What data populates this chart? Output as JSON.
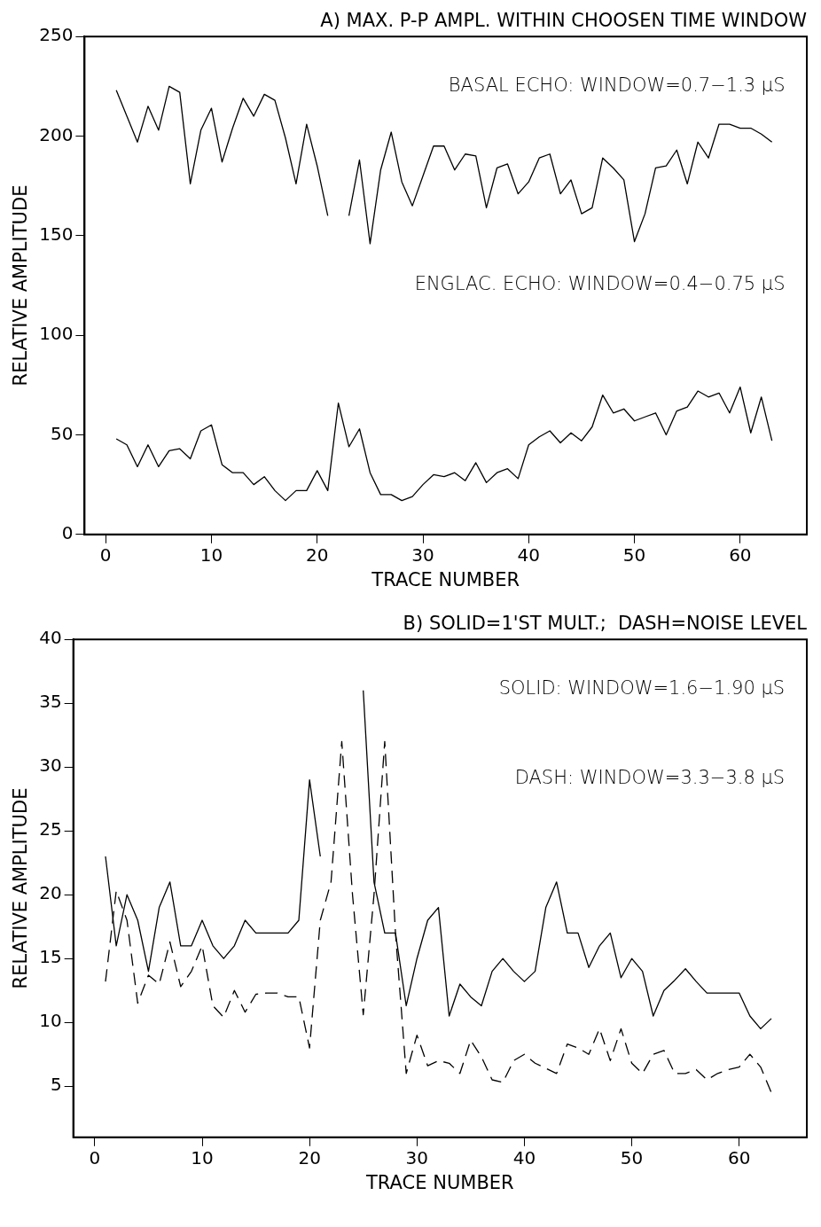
{
  "chart_data": [
    {
      "type": "line",
      "title": "A) MAX. P-P AMPL. WITHIN CHOOSEN TIME WINDOW",
      "xlabel": "TRACE NUMBER",
      "ylabel": "RELATIVE AMPLITUDE",
      "annotations": [
        "BASAL ECHO: WINDOW=0.7−1.3 μS",
        "ENGLAC. ECHO: WINDOW=0.4−0.75 μS"
      ],
      "x": [
        1,
        2,
        3,
        4,
        5,
        6,
        7,
        8,
        9,
        10,
        11,
        12,
        13,
        14,
        15,
        16,
        17,
        18,
        19,
        20,
        21,
        22,
        23,
        24,
        25,
        26,
        27,
        28,
        29,
        30,
        31,
        32,
        33,
        34,
        35,
        36,
        37,
        38,
        39,
        40,
        41,
        42,
        43,
        44,
        45,
        46,
        47,
        48,
        49,
        50,
        51,
        52,
        53,
        54,
        55,
        56,
        57,
        58,
        59,
        60,
        61,
        62,
        63
      ],
      "series": [
        {
          "color": "#000000",
          "line_style": "solid",
          "values": [
            223,
            210,
            197,
            215,
            203,
            225,
            222,
            176,
            203,
            214,
            187,
            204,
            219,
            210,
            221,
            218,
            199,
            176,
            206,
            185,
            160,
            null,
            160,
            188,
            146,
            183,
            202,
            177,
            165,
            180,
            195,
            195,
            183,
            191,
            190,
            164,
            184,
            186,
            171,
            177,
            189,
            191,
            171,
            178,
            161,
            164,
            189,
            184,
            178,
            147,
            161,
            184,
            185,
            193,
            176,
            197,
            189,
            206,
            206,
            204,
            204,
            201,
            197
          ]
        },
        {
          "color": "#000000",
          "line_style": "solid",
          "values": [
            48,
            45,
            34,
            45,
            34,
            42,
            43,
            38,
            52,
            55,
            35,
            31,
            31,
            25,
            29,
            22,
            17,
            22,
            22,
            32,
            22,
            66,
            44,
            53,
            31,
            20,
            20,
            17,
            19,
            25,
            30,
            29,
            31,
            27,
            36,
            26,
            31,
            33,
            28,
            45,
            49,
            52,
            46,
            51,
            47,
            54,
            70,
            61,
            63,
            57,
            59,
            61,
            50,
            62,
            64,
            72,
            69,
            71,
            61,
            74,
            51,
            69,
            47
          ]
        }
      ],
      "xlim": [
        -2,
        66.3
      ],
      "xticks": [
        0,
        10,
        20,
        30,
        40,
        50,
        60
      ],
      "ylim": [
        0,
        250
      ],
      "yticks": [
        0,
        50,
        100,
        150,
        200,
        250
      ],
      "grid": false,
      "legend": false,
      "marker": "none"
    },
    {
      "type": "line",
      "title": "B) SOLID=1'ST MULT.;  DASH=NOISE LEVEL",
      "xlabel": "TRACE NUMBER",
      "ylabel": "RELATIVE AMPLITUDE",
      "annotations": [
        "SOLID: WINDOW=1.6−1.90 μS",
        "DASH: WINDOW=3.3−3.8 μS"
      ],
      "x": [
        1,
        2,
        3,
        4,
        5,
        6,
        7,
        8,
        9,
        10,
        11,
        12,
        13,
        14,
        15,
        16,
        17,
        18,
        19,
        20,
        21,
        22,
        23,
        24,
        25,
        26,
        27,
        28,
        29,
        30,
        31,
        32,
        33,
        34,
        35,
        36,
        37,
        38,
        39,
        40,
        41,
        42,
        43,
        44,
        45,
        46,
        47,
        48,
        49,
        50,
        51,
        52,
        53,
        54,
        55,
        56,
        57,
        58,
        59,
        60,
        61,
        62,
        63
      ],
      "series": [
        {
          "color": "#000000",
          "line_style": "solid",
          "values": [
            23,
            16,
            20,
            18,
            14,
            19,
            21,
            16,
            16,
            18,
            16,
            15,
            16,
            18,
            17,
            17,
            17,
            17,
            18,
            29,
            23,
            null,
            null,
            null,
            36,
            21,
            17,
            17,
            11.3,
            15,
            18,
            19,
            10.5,
            13,
            12,
            11.3,
            14,
            15,
            14,
            13.2,
            14,
            19,
            21,
            17,
            17,
            14.3,
            16,
            17,
            13.5,
            15,
            14,
            10.5,
            12.5,
            13.3,
            14.2,
            13.2,
            12.3,
            12.3,
            12.3,
            12.3,
            10.5,
            9.5,
            10.3
          ]
        },
        {
          "color": "#000000",
          "line_style": "dashed",
          "values": [
            13.2,
            20.3,
            18,
            11.5,
            13.7,
            13,
            16.3,
            12.8,
            14,
            16,
            11.3,
            10.4,
            12.5,
            10.8,
            12.2,
            12.3,
            12.3,
            12,
            12,
            8,
            18,
            21,
            32,
            20,
            10.6,
            20,
            32,
            17,
            6,
            9,
            6.6,
            7,
            6.8,
            6,
            8.6,
            7.3,
            5.5,
            5.3,
            7,
            7.5,
            6.8,
            6.4,
            6,
            8.3,
            8,
            7.5,
            9.5,
            7,
            9.5,
            6.8,
            6,
            7.5,
            7.8,
            6,
            6,
            6.3,
            5.5,
            6,
            6.3,
            6.5,
            7.5,
            6.5,
            4.5
          ]
        }
      ],
      "xlim": [
        -2,
        66.3
      ],
      "xticks": [
        0,
        10,
        20,
        30,
        40,
        50,
        60
      ],
      "ylim": [
        1,
        40
      ],
      "yticks": [
        5,
        10,
        15,
        20,
        25,
        30,
        35,
        40
      ],
      "grid": false,
      "legend": false,
      "marker": "none"
    }
  ]
}
